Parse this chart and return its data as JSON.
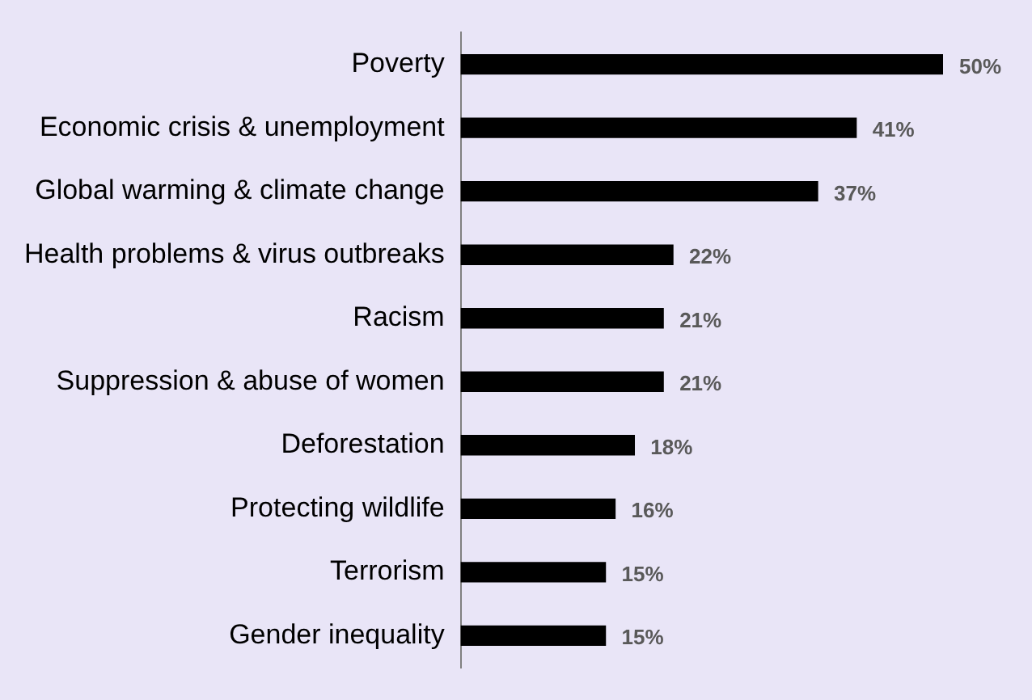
{
  "chart_data": {
    "type": "bar",
    "orientation": "horizontal",
    "categories": [
      "Poverty",
      "Economic crisis & unemployment",
      "Global warming & climate change",
      "Health problems & virus outbreaks",
      "Racism",
      "Suppression & abuse of women",
      "Deforestation",
      "Protecting wildlife",
      "Terrorism",
      "Gender inequality"
    ],
    "values": [
      50,
      41,
      37,
      22,
      21,
      21,
      18,
      16,
      15,
      15
    ],
    "value_labels": [
      "50%",
      "41%",
      "37%",
      "22%",
      "21%",
      "21%",
      "18%",
      "16%",
      "15%",
      "15%"
    ],
    "color": "#000000",
    "legend": false,
    "tick_labels": "y"
  }
}
